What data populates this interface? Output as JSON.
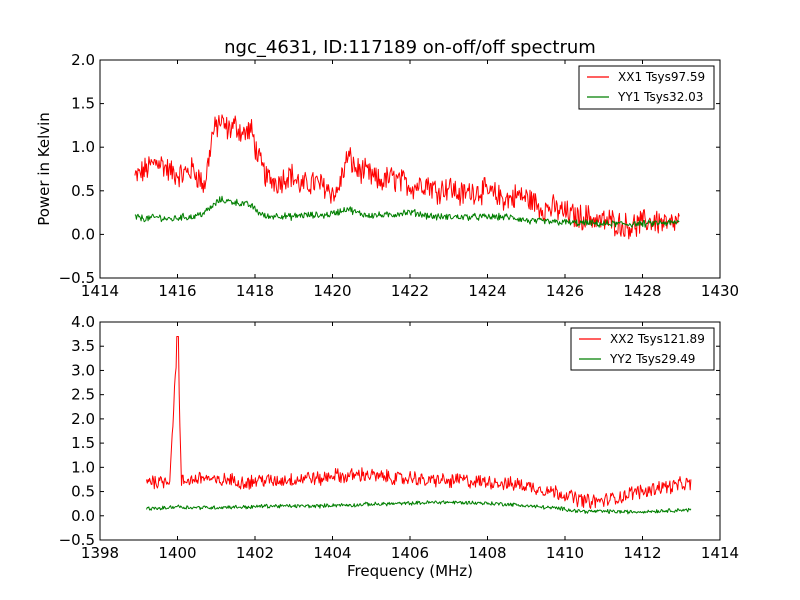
{
  "chart_data": [
    {
      "type": "line",
      "title": "ngc_4631, ID:117189 on-off/off spectrum",
      "xlabel": "",
      "ylabel": "Power in Kelvin",
      "xlim": [
        1414,
        1430
      ],
      "ylim": [
        -0.5,
        2.0
      ],
      "xticks": [
        1414,
        1416,
        1418,
        1420,
        1422,
        1424,
        1426,
        1428,
        1430
      ],
      "yticks": [
        -0.5,
        0.0,
        0.5,
        1.0,
        1.5,
        2.0
      ],
      "xtick_labels": [
        "1414",
        "1416",
        "1418",
        "1420",
        "1422",
        "1424",
        "1426",
        "1428",
        "1430"
      ],
      "ytick_labels": [
        "−0.5",
        "0.0",
        "0.5",
        "1.0",
        "1.5",
        "2.0"
      ],
      "grid": false,
      "legend_position": "top-right",
      "series": [
        {
          "name": "XX1 Tsys97.59",
          "color": "#ff0000",
          "x": [
            1414.9,
            1415.2,
            1415.5,
            1415.8,
            1416.1,
            1416.4,
            1416.7,
            1416.9,
            1417.1,
            1417.3,
            1417.5,
            1417.7,
            1417.9,
            1418.1,
            1418.3,
            1418.6,
            1418.9,
            1419.2,
            1419.5,
            1419.8,
            1420.1,
            1420.4,
            1420.6,
            1420.9,
            1421.2,
            1421.5,
            1421.8,
            1422.1,
            1422.4,
            1422.7,
            1423.0,
            1423.3,
            1423.6,
            1423.9,
            1424.2,
            1424.5,
            1424.8,
            1425.1,
            1425.4,
            1425.7,
            1426.0,
            1426.3,
            1426.6,
            1426.9,
            1427.2,
            1427.5,
            1427.8,
            1428.1,
            1428.4,
            1428.7,
            1428.95
          ],
          "y": [
            0.65,
            0.75,
            0.85,
            0.72,
            0.68,
            0.75,
            0.55,
            1.15,
            1.3,
            1.2,
            1.25,
            1.15,
            1.2,
            0.85,
            0.65,
            0.6,
            0.7,
            0.55,
            0.6,
            0.55,
            0.45,
            0.9,
            0.75,
            0.7,
            0.6,
            0.65,
            0.6,
            0.55,
            0.6,
            0.5,
            0.55,
            0.45,
            0.5,
            0.5,
            0.45,
            0.4,
            0.45,
            0.4,
            0.3,
            0.3,
            0.25,
            0.2,
            0.2,
            0.15,
            0.15,
            0.1,
            0.1,
            0.15,
            0.15,
            0.1,
            0.15
          ]
        },
        {
          "name": "YY1 Tsys32.03",
          "color": "#007f00",
          "x": [
            1414.9,
            1415.2,
            1415.5,
            1415.8,
            1416.1,
            1416.4,
            1416.7,
            1416.9,
            1417.1,
            1417.3,
            1417.5,
            1417.7,
            1417.9,
            1418.1,
            1418.3,
            1418.6,
            1418.9,
            1419.2,
            1419.5,
            1419.8,
            1420.1,
            1420.4,
            1420.6,
            1420.9,
            1421.2,
            1421.5,
            1421.8,
            1422.1,
            1422.4,
            1422.7,
            1423.0,
            1423.3,
            1423.6,
            1423.9,
            1424.2,
            1424.5,
            1424.8,
            1425.1,
            1425.4,
            1425.7,
            1426.0,
            1426.3,
            1426.6,
            1426.9,
            1427.2,
            1427.5,
            1427.8,
            1428.1,
            1428.4,
            1428.7,
            1428.95
          ],
          "y": [
            0.2,
            0.18,
            0.2,
            0.17,
            0.2,
            0.2,
            0.25,
            0.32,
            0.4,
            0.38,
            0.37,
            0.35,
            0.33,
            0.25,
            0.2,
            0.22,
            0.2,
            0.22,
            0.22,
            0.22,
            0.25,
            0.3,
            0.25,
            0.22,
            0.22,
            0.22,
            0.25,
            0.25,
            0.22,
            0.2,
            0.2,
            0.2,
            0.2,
            0.2,
            0.2,
            0.2,
            0.18,
            0.15,
            0.15,
            0.14,
            0.14,
            0.13,
            0.13,
            0.12,
            0.12,
            0.12,
            0.12,
            0.12,
            0.13,
            0.13,
            0.14
          ]
        }
      ]
    },
    {
      "type": "line",
      "title": "",
      "xlabel": "Frequency (MHz)",
      "ylabel": "",
      "xlim": [
        1398,
        1414
      ],
      "ylim": [
        -0.5,
        4.0
      ],
      "xticks": [
        1398,
        1400,
        1402,
        1404,
        1406,
        1408,
        1410,
        1412,
        1414
      ],
      "yticks": [
        -0.5,
        0.0,
        0.5,
        1.0,
        1.5,
        2.0,
        2.5,
        3.0,
        3.5,
        4.0
      ],
      "xtick_labels": [
        "1398",
        "1400",
        "1402",
        "1404",
        "1406",
        "1408",
        "1410",
        "1412",
        "1414"
      ],
      "ytick_labels": [
        "−0.5",
        "0.0",
        "0.5",
        "1.0",
        "1.5",
        "2.0",
        "2.5",
        "3.0",
        "3.5",
        "4.0"
      ],
      "grid": false,
      "legend_position": "top-right",
      "series": [
        {
          "name": "XX2 Tsys121.89",
          "color": "#ff0000",
          "x": [
            1399.2,
            1399.5,
            1399.8,
            1400.0,
            1400.1,
            1400.4,
            1400.7,
            1401.0,
            1401.3,
            1401.6,
            1401.9,
            1402.2,
            1402.5,
            1402.8,
            1403.1,
            1403.4,
            1403.7,
            1404.0,
            1404.3,
            1404.6,
            1404.9,
            1405.2,
            1405.5,
            1405.8,
            1406.1,
            1406.4,
            1406.7,
            1407.0,
            1407.3,
            1407.6,
            1407.9,
            1408.2,
            1408.5,
            1408.8,
            1409.1,
            1409.4,
            1409.7,
            1410.0,
            1410.3,
            1410.6,
            1410.9,
            1411.2,
            1411.5,
            1411.8,
            1412.1,
            1412.4,
            1412.7,
            1413.0,
            1413.25
          ],
          "y": [
            0.75,
            0.7,
            0.75,
            3.7,
            0.7,
            0.75,
            0.8,
            0.7,
            0.75,
            0.7,
            0.7,
            0.75,
            0.7,
            0.75,
            0.75,
            0.8,
            0.75,
            0.85,
            0.8,
            0.85,
            0.85,
            0.8,
            0.8,
            0.75,
            0.8,
            0.7,
            0.75,
            0.7,
            0.75,
            0.7,
            0.7,
            0.7,
            0.65,
            0.65,
            0.6,
            0.55,
            0.5,
            0.45,
            0.35,
            0.3,
            0.3,
            0.35,
            0.4,
            0.5,
            0.5,
            0.6,
            0.6,
            0.65,
            0.65
          ]
        },
        {
          "name": "YY2 Tsys29.49",
          "color": "#007f00",
          "x": [
            1399.2,
            1399.5,
            1399.8,
            1400.0,
            1400.1,
            1400.4,
            1400.7,
            1401.0,
            1401.3,
            1401.6,
            1401.9,
            1402.2,
            1402.5,
            1402.8,
            1403.1,
            1403.4,
            1403.7,
            1404.0,
            1404.3,
            1404.6,
            1404.9,
            1405.2,
            1405.5,
            1405.8,
            1406.1,
            1406.4,
            1406.7,
            1407.0,
            1407.3,
            1407.6,
            1407.9,
            1408.2,
            1408.5,
            1408.8,
            1409.1,
            1409.4,
            1409.7,
            1410.0,
            1410.3,
            1410.6,
            1410.9,
            1411.2,
            1411.5,
            1411.8,
            1412.1,
            1412.4,
            1412.7,
            1413.0,
            1413.25
          ],
          "y": [
            0.15,
            0.15,
            0.17,
            0.2,
            0.18,
            0.17,
            0.17,
            0.17,
            0.18,
            0.18,
            0.18,
            0.2,
            0.2,
            0.2,
            0.2,
            0.2,
            0.2,
            0.22,
            0.22,
            0.22,
            0.24,
            0.24,
            0.25,
            0.25,
            0.26,
            0.27,
            0.28,
            0.28,
            0.27,
            0.27,
            0.26,
            0.25,
            0.24,
            0.22,
            0.2,
            0.18,
            0.16,
            0.14,
            0.1,
            0.09,
            0.09,
            0.09,
            0.08,
            0.08,
            0.09,
            0.1,
            0.11,
            0.12,
            0.12
          ]
        }
      ]
    }
  ]
}
